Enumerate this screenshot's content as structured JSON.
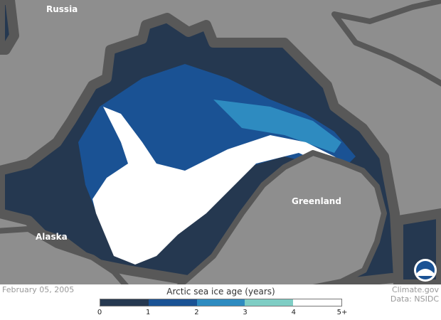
{
  "map": {
    "labels": {
      "russia": "Russia",
      "greenland": "Greenland",
      "alaska": "Alaska"
    },
    "colors": {
      "land": "#8e8e8e",
      "open_water": "#585858"
    },
    "logo": "NOAA"
  },
  "footer": {
    "date": "February 05, 2005",
    "title": "Arctic sea ice age (years)",
    "credit_site": "Climate.gov",
    "credit_data": "Data: NSIDC"
  },
  "legend": {
    "bins": [
      {
        "from": 0,
        "to": 1,
        "color": "#253850"
      },
      {
        "from": 1,
        "to": 2,
        "color": "#1a5294"
      },
      {
        "from": 2,
        "to": 3,
        "color": "#2e8bc0"
      },
      {
        "from": 3,
        "to": 4,
        "color": "#7ecdc4"
      },
      {
        "from": 4,
        "to": "5+",
        "color": "#ffffff"
      }
    ],
    "ticks": [
      "0",
      "1",
      "2",
      "3",
      "4",
      "5+"
    ]
  }
}
